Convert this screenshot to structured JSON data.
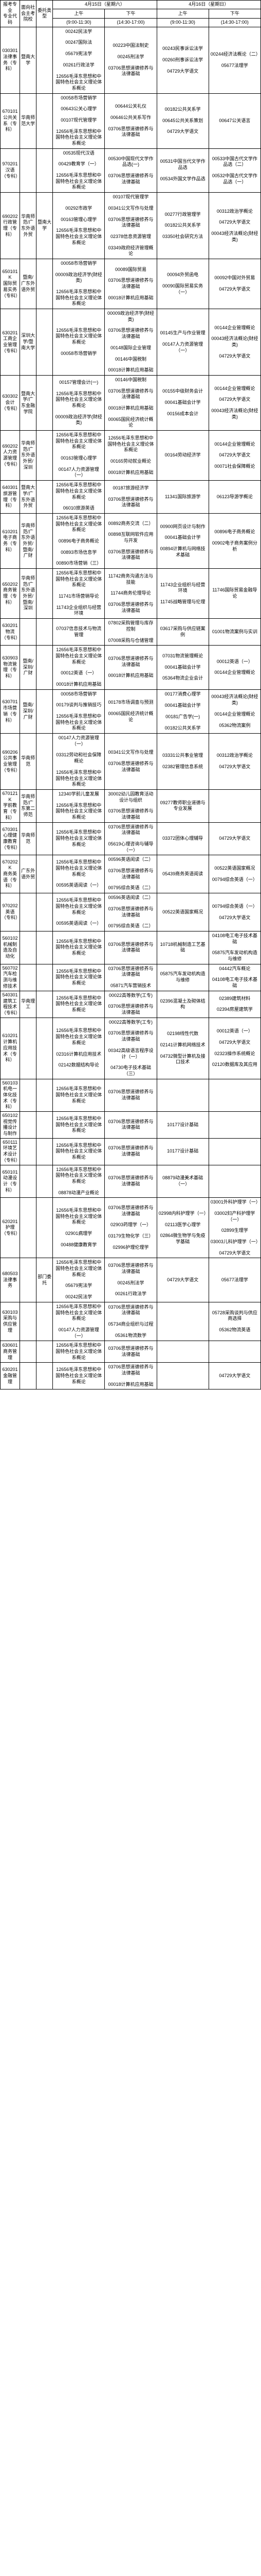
{
  "headers": {
    "major_code": "报考专业",
    "major_code_sub": "专业代码",
    "school": "面向社会主考院校",
    "type": "委托类型",
    "day1": "4月15日（星期六）",
    "day2": "4月16日（星期日）",
    "morning": "上午",
    "afternoon": "下午",
    "morning_time": "(9:00-11:30)",
    "afternoon_time": "(14:30-17:00)"
  },
  "rows": [
    {
      "code": "030301",
      "name": "法律事务（专科）",
      "school": "暨南大学",
      "type": "",
      "c1": [
        "00242民法学",
        "00247国际法",
        "05679宪法学",
        "00261行政法学",
        "12656毛泽东思想和中国特色社会主义理论体系概论"
      ],
      "c2": [
        "00223中国法制史",
        "00245刑法学",
        "03706思想道德修养与法律基础"
      ],
      "c3": [
        "00243民事诉讼法学",
        "00260刑事诉讼法学",
        "04729大学语文"
      ],
      "c4": [
        "00244经济法概论（二）",
        "05677法理学"
      ]
    },
    {
      "code": "670101",
      "name": "公共关系（专科）",
      "school": "华南师范大学",
      "type": "",
      "c1": [
        "00058市场营销学",
        "00643公关心理学",
        "00107现代管理学",
        "12656毛泽东思想和中国特色社会主义理论体系概论"
      ],
      "c2": [
        "00644公关礼仪",
        "00646公共关系写作",
        "03706思想道德修养与法律基础"
      ],
      "c3": [
        "00182公共关系学",
        "00645公共关系策划",
        "04729大学语文"
      ],
      "c4": [
        "00647公关语言"
      ]
    },
    {
      "code": "970201",
      "name": "汉语（专科）",
      "school": "",
      "type": "",
      "c1": [
        "00535现代汉语",
        "00429教育学（一）",
        "12656毛泽东思想和中国特色社会主义理论体系概论"
      ],
      "c2": [
        "00530中国现代文学作品选(一)",
        "03706思想道德修养与法律基础"
      ],
      "c3": [
        "00531中国当代文学作品选",
        "00534外国文学作品选"
      ],
      "c4": [
        "00533中国古代文学作品选（二）",
        "00532中国古代文学作品选（一）"
      ]
    },
    {
      "code": "690202",
      "name": "行政管理（专科）",
      "school": "华南师范/广东外语外贸",
      "type": "暨南大学",
      "c1": [
        "00292市政学",
        "00163管理心理学",
        "12656毛泽东思想和中国特色社会主义理论体系概论"
      ],
      "c2": [
        "00107现代管理学",
        "00341公文写作与处理",
        "03706思想道德修养与法律基础",
        "02378信息资源管理",
        "03349政府经济管理概论"
      ],
      "c3": [
        "00277行政管理学",
        "00182公共关系学",
        "03350社会研究方法"
      ],
      "c4": [
        "00312政治学概论",
        "04729大学语文",
        "00043经济法概论(财经类)"
      ]
    },
    {
      "code": "650101K",
      "name": "国际贸易实务（专科）",
      "school": "暨南/广东外语外贸",
      "type": "",
      "c1": [
        "00058市场营销学",
        "00009政治经济学(财经类)",
        "12656毛泽东思想和中国特色社会主义理论体系概论"
      ],
      "c2": [
        "00089国际贸易",
        "03706思想道德修养与法律基础",
        "00018计算机应用基础"
      ],
      "c3": [
        "00094外贸函电",
        "00090国际贸易实务（一）"
      ],
      "c4": [
        "00092中国对外贸易",
        "04729大学语文"
      ]
    },
    {
      "code": "630201",
      "name": "工商企业管理（专科）",
      "school": "深圳大学/暨南大学",
      "type": "",
      "c1": [
        "12656毛泽东思想和中国特色社会主义理论体系概论",
        "00058市场营销学"
      ],
      "c2": [
        "00009政治经济学(财经类)",
        "03706思想道德修养与法律基础",
        "00148国际企业管理",
        "00146中国税制",
        "00018计算机应用基础"
      ],
      "c3": [
        "00145生产与作业管理",
        "00147人力资源管理（一）"
      ],
      "c4": [
        "00144企业管理概论",
        "00043经济法概论(财经类)",
        "04729大学语文"
      ]
    },
    {
      "code": "630302",
      "name": "会计（专科）",
      "school": "暨南大学/广东金融学院",
      "type": "",
      "c1": [
        "00157管理会计(一)",
        "12656毛泽东思想和中国特色社会主义理论体系概论",
        "00009政治经济学(财经类)"
      ],
      "c2": [
        "00146中国税制",
        "03706思想道德修养与法律基础",
        "00018计算机应用基础",
        "00065国民经济统计概论"
      ],
      "c3": [
        "00155中级财务会计",
        "00041基础会计学",
        "00156成本会计"
      ],
      "c4": [
        "00144企业管理概论",
        "04729大学语文",
        "00043经济法概论(财经类)"
      ]
    },
    {
      "code": "690202",
      "name": "人力资源管理（专科）",
      "school": "华南师范/广东外语外贸/深圳",
      "type": "",
      "c1": [
        "12656毛泽东思想和中国特色社会主义理论体系概论",
        "00163管理心理学",
        "00147人力资源管理（一）"
      ],
      "c2": [
        "12656毛泽东思想和中国特色社会主义理论体系概论",
        "00165劳动就业概论",
        "00018计算机应用基础"
      ],
      "c3": [
        "00164劳动经济学"
      ],
      "c4": [
        "00144企业管理概论",
        "04729大学语文",
        "00071社会保障概论"
      ]
    },
    {
      "code": "640301",
      "name": "旅游管理（专科）",
      "school": "暨南大学/广东外语外贸",
      "type": "",
      "c1": [
        "12656毛泽东思想和中国特色社会主义理论体系概论",
        "06010旅游英语"
      ],
      "c2": [
        "00187旅游经济学",
        "03706思想道德修养与法律基础"
      ],
      "c3": [
        "11341国际旅游学"
      ],
      "c4": [
        "06123导游学概论"
      ]
    },
    {
      "code": "610201",
      "name": "电子商务（专科）",
      "school": "华南师范/广东外语外贸/暨南/广财",
      "type": "",
      "c1": [
        "12656毛泽东思想和中国特色社会主义理论体系概论",
        "00896电子商务概论",
        "00893市场信息学",
        "00890市场营销（三）"
      ],
      "c2": [
        "00892商务交流（二）",
        "00898互联网软件应用与开发",
        "03706思想道德修养与法律基础"
      ],
      "c3": [
        "00900网页设计与制作",
        "00041基础会计学",
        "00894计算机与网络技术基础"
      ],
      "c4": [
        "00896电子商务概论",
        "00902电子商务案例分析"
      ]
    },
    {
      "code": "650202",
      "name": "商务管理（专科）",
      "school": "华南师范/广东外语外贸/暨南/深圳",
      "type": "",
      "c1": [
        "12656毛泽东思想和中国特色社会主义理论体系概论",
        "11741市场营销导论",
        "11743企业组织与经营环境"
      ],
      "c2": [
        "11742商务沟通方法与技能",
        "11744商务伦理导论",
        "03706思想道德修养与法律基础"
      ],
      "c3": [
        "11743企业组织与经营环境",
        "11745战略管理与伦理"
      ],
      "c4": [
        "11746国际贸易金融导论"
      ]
    },
    {
      "code": "630201",
      "name": "物流（专科）",
      "school": "",
      "type": "",
      "c1": [
        "07037信息技术与物流管理"
      ],
      "c2": [
        "07802采购管理与库存控制",
        "07008采购与仓储管理"
      ],
      "c3": [
        "03617采购与供应链案例"
      ],
      "c4": [
        "01001物流案例与实训"
      ]
    },
    {
      "code": "630903",
      "name": "物流管理（专科）",
      "school": "暨南/深圳/广财",
      "type": "",
      "c1": [
        "12656毛泽东思想和中国特色社会主义理论体系概论",
        "00012英语（一）",
        "00018计算机应用基础"
      ],
      "c2": [
        "03706思想道德修养与法律基础",
        "00018计算机应用基础"
      ],
      "c3": [
        "07031物流管理概论",
        "00041基础会计学",
        "05364物流企业会计"
      ],
      "c4": [
        "00012英语（一）",
        "00144企业管理概论"
      ]
    },
    {
      "code": "630701",
      "name": "市场营销（专科）",
      "school": "暨南/深圳/广财",
      "type": "",
      "c1": [
        "00058市场营销学",
        "00179谈判与推销技巧",
        "12656毛泽东思想和中国特色社会主义理论体系概论"
      ],
      "c2": [
        "00178市场调查与预测",
        "00065国民经济统计概论"
      ],
      "c3": [
        "00177消费心理学",
        "00041基础会计学",
        "00181广告学(一)",
        "00182公共关系学"
      ],
      "c4": [
        "00043经济法概论(财经类)",
        "00144企业管理概论",
        "05362物流案例"
      ]
    },
    {
      "code": "690206",
      "name": "公共事业管理（专科）",
      "school": "华南师范",
      "type": "",
      "c1": [
        "00147人力资源管理（一）",
        "03312劳动和社会保障概论",
        "12656毛泽东思想和中国特色社会主义理论体系概论"
      ],
      "c2": [
        "00341公文写作与处理",
        "03706思想道德修养与法律基础"
      ],
      "c3": [
        "03331公共事业管理",
        "02382管理信息系统"
      ],
      "c4": [
        "00312政治学概论",
        "04729大学语文"
      ]
    },
    {
      "code": "670121K",
      "name": "学前教育（专科）",
      "school": "华南师范/广东第二师范",
      "type": "",
      "c1": [
        "12340学前儿童发展",
        "12656毛泽东思想和中国特色社会主义理论体系概论"
      ],
      "c2": [
        "30002幼儿园教育活动设计与组织",
        "03706思想道德修养与法律基础"
      ],
      "c3": [
        "09277教师职业道德与专业发展"
      ],
      "c4": []
    },
    {
      "code": "670301",
      "name": "心理健康教育（专科）",
      "school": "华南师范",
      "type": "",
      "c1": [
        "12656毛泽东思想和中国特色社会主义理论体系概论"
      ],
      "c2": [
        "03706思想道德修养与法律基础",
        "05619心理咨询与辅导（一）"
      ],
      "c3": [
        "03372团体心理辅导"
      ],
      "c4": [
        "04729大学语文"
      ]
    },
    {
      "code": "670202K",
      "name": "商务英语（专科）",
      "school": "广东外语外贸",
      "type": "",
      "c1": [
        "12656毛泽东思想和中国特色社会主义理论体系概论",
        "00595英语阅读（一）"
      ],
      "c2": [
        "00596英语阅读（二）",
        "03706思想道德修养与法律基础",
        "00795综合英语（二）"
      ],
      "c3": [
        "05439商务英语阅读"
      ],
      "c4": [
        "00522英语国家概况",
        "00794综合英语（一）"
      ]
    },
    {
      "code": "970202",
      "name": "英语（专科）",
      "school": "",
      "type": "",
      "c1": [
        "12656毛泽东思想和中国特色社会主义理论体系概论",
        "00595英语阅读（一）"
      ],
      "c2": [
        "00596英语阅读（二）",
        "03706思想道德修养与法律基础",
        "00795综合英语（二）"
      ],
      "c3": [
        "00522英语国家概况"
      ],
      "c4": [
        "00794综合英语（一）",
        "04729大学语文"
      ]
    },
    {
      "code": "560102",
      "name": "机械制造及自动化",
      "school": "",
      "type": "",
      "c1": [
        "12656毛泽东思想和中国特色社会主义理论体系概论"
      ],
      "c2": [
        "03706思想道德修养与法律基础"
      ],
      "c3": [
        "10718机械制造工艺基础"
      ],
      "c4": [
        "04108电工电子技术基础",
        "05875汽车发动机构造与维修"
      ]
    },
    {
      "code": "560702",
      "name": "汽车检测与维修技术",
      "school": "",
      "type": "",
      "c1": [
        "12656毛泽东思想和中国特色社会主义理论体系概论"
      ],
      "c2": [
        "03706思想道德修养与法律基础",
        "05871汽车营销技术"
      ],
      "c3": [
        "05875汽车发动机构造与维修"
      ],
      "c4": [
        "04442汽车概论",
        "04108电工电子技术基础"
      ]
    },
    {
      "code": "540301",
      "name": "建筑工程技术（专科）",
      "school": "华南理工",
      "type": "",
      "c1": [
        "12656毛泽东思想和中国特色社会主义理论体系概论"
      ],
      "c2": [
        "00022高等数学(工专)",
        "03706思想道德修养与法律基础"
      ],
      "c3": [
        "02396混凝土及砌体结构"
      ],
      "c4": [
        "02389建筑材料",
        "02394房屋建筑学"
      ]
    },
    {
      "code": "610201",
      "name": "计算机应用技术（专科）",
      "school": "",
      "type": "",
      "c1": [
        "12656毛泽东思想和中国特色社会主义理论体系概论",
        "02316计算机应用技术",
        "02142数据结构导论"
      ],
      "c2": [
        "00022高等数学(工专)",
        "03706思想道德修养与法律基础",
        "00342高级语言程序设计（一）",
        "04730电子技术基础（三）"
      ],
      "c3": [
        "02198线性代数",
        "02141计算机网络技术",
        "04732微型计算机及接口技术"
      ],
      "c4": [
        "00012英语（一）",
        "04729大学语文",
        "02323操作系统概论",
        "02120数据库及其应用"
      ]
    },
    {
      "code": "560103",
      "name": "机电一体化技术（专科）",
      "school": "",
      "type": "",
      "c1": [
        "12656毛泽东思想和中国特色社会主义理论体系概论"
      ],
      "c2": [
        "03706思想道德修养与法律基础"
      ],
      "c3": [],
      "c4": []
    },
    {
      "code": "650102",
      "name": "视觉传播设计与制作",
      "school": "",
      "type": "",
      "c1": [
        "12656毛泽东思想和中国特色社会主义理论体系概论"
      ],
      "c2": [
        "03706思想道德修养与法律基础"
      ],
      "c3": [
        "10177设计基础"
      ],
      "c4": []
    },
    {
      "code": "650111",
      "name": "环境艺术设计（专科）",
      "school": "",
      "type": "",
      "c1": [
        "12656毛泽东思想和中国特色社会主义理论体系概论"
      ],
      "c2": [
        "03706思想道德修养与法律基础"
      ],
      "c3": [
        "10177设计基础"
      ],
      "c4": []
    },
    {
      "code": "650101",
      "name": "动漫设计（专科）",
      "school": "",
      "type": "",
      "c1": [
        "12656毛泽东思想和中国特色社会主义理论体系概论",
        "08878动漫产业概论"
      ],
      "c2": [
        "03706思想道德修养与法律基础"
      ],
      "c3": [
        "08879动漫美术基础（一）"
      ],
      "c4": []
    },
    {
      "code": "620201",
      "name": "护理（专科）",
      "school": "",
      "type": "",
      "c1": [
        "12656毛泽东思想和中国特色社会主义理论体系概论",
        "02901病理学",
        "00488健康教育学"
      ],
      "c2": [
        "03706思想道德修养与法律基础",
        "02903药理学（一）",
        "03179生物化学（三）",
        "02996护理伦理学"
      ],
      "c3": [
        "02998内科护理学（一）",
        "02113医学心理学",
        "02864微生物学与免疫学基础"
      ],
      "c4": [
        "03001外科护理学（一）",
        "03002妇产科护理学（一）",
        "02899生理学",
        "03003儿科护理学（一）",
        "04729大学语文"
      ]
    },
    {
      "code": "680503",
      "name": "法律事务",
      "school": "",
      "type": "部门委托",
      "c1": [
        "12656毛泽东思想和中国特色社会主义理论体系概论",
        "05679宪法学",
        "00242民法学"
      ],
      "c2": [
        "03706思想道德修养与法律基础",
        "00245刑法学",
        "00261行政法学"
      ],
      "c3": [
        "04729大学语文"
      ],
      "c4": [
        "05677法理学"
      ]
    },
    {
      "code": "630103",
      "name": "采购与供应管理",
      "school": "",
      "type": "",
      "c1": [
        "12656毛泽东思想和中国特色社会主义理论体系概论",
        "00147人力资源管理（一）"
      ],
      "c2": [
        "03706思想道德修养与法律基础",
        "05734商业组织与过程",
        "05361物流数学"
      ],
      "c3": [],
      "c4": [
        "05728采购谈判与供应商选择",
        "05362物流英语"
      ]
    },
    {
      "code": "630601",
      "name": "商务管理",
      "school": "",
      "type": "",
      "c1": [
        "12656毛泽东思想和中国特色社会主义理论体系概论"
      ],
      "c2": [
        "03706思想道德修养与法律基础"
      ],
      "c3": [],
      "c4": []
    },
    {
      "code": "630201",
      "name": "金融管理",
      "school": "",
      "type": "",
      "c1": [
        "12656毛泽东思想和中国特色社会主义理论体系概论"
      ],
      "c2": [
        "03706思想道德修养与法律基础",
        "00018计算机应用基础"
      ],
      "c3": [],
      "c4": [
        "04729大学语文"
      ]
    }
  ]
}
